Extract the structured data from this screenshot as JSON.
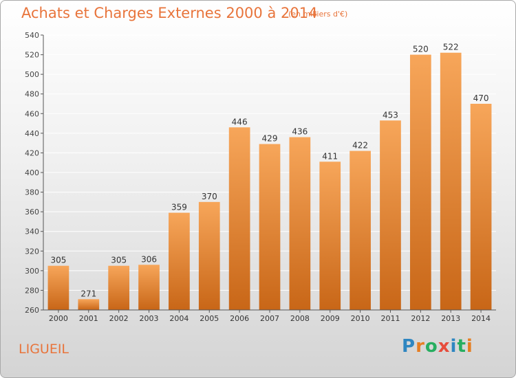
{
  "header": {
    "title": "Achats et Charges Externes 2000 à 2014",
    "subtitle": "(en milliers d'€)"
  },
  "footer": {
    "commune": "LIGUEIL",
    "brand_letters": [
      {
        "char": "P",
        "color": "#2e86c1"
      },
      {
        "char": "r",
        "color": "#e67e22"
      },
      {
        "char": "o",
        "color": "#27ae60"
      },
      {
        "char": "x",
        "color": "#e74c3c"
      },
      {
        "char": "i",
        "color": "#2e86c1"
      },
      {
        "char": "t",
        "color": "#27ae60"
      },
      {
        "char": "i",
        "color": "#e67e22"
      }
    ]
  },
  "colors": {
    "accent": "#e8743b",
    "bar_top": "#f7a65a",
    "bar_bottom": "#c86617",
    "grid": "#ffffff"
  },
  "chart_data": {
    "type": "bar",
    "categories": [
      "2000",
      "2001",
      "2002",
      "2003",
      "2004",
      "2005",
      "2006",
      "2007",
      "2008",
      "2009",
      "2010",
      "2011",
      "2012",
      "2013",
      "2014"
    ],
    "values": [
      305,
      271,
      305,
      306,
      359,
      370,
      446,
      429,
      436,
      411,
      422,
      453,
      520,
      522,
      470
    ],
    "ylim": [
      260,
      540
    ],
    "yticks": [
      260,
      280,
      300,
      320,
      340,
      360,
      380,
      400,
      420,
      440,
      460,
      480,
      500,
      520,
      540
    ],
    "grid": true,
    "title": "Achats et Charges Externes 2000 à 2014",
    "xlabel": "",
    "ylabel": ""
  }
}
